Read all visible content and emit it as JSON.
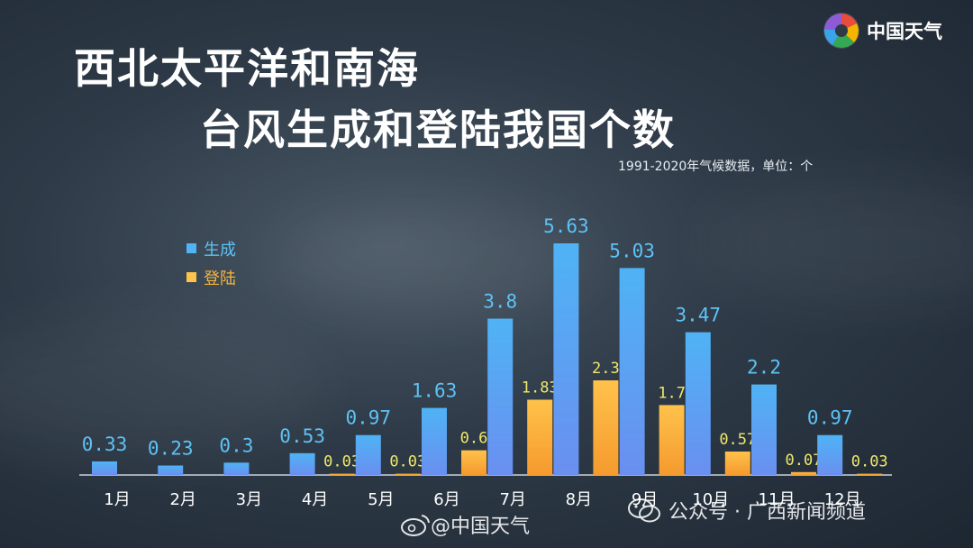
{
  "header": {
    "title_line1": "西北太平洋和南海",
    "title_line2": "台风生成和登陆我国个数",
    "subtitle": "1991-2020年气候数据，单位：个"
  },
  "logo": {
    "text": "中国天气",
    "icon": "pinwheel-logo-icon"
  },
  "watermarks": {
    "weibo": "@中国天气",
    "weibo_icon": "weibo-icon",
    "wechat": "公众号 · 广西新闻频道",
    "wechat_icon": "wechat-icon"
  },
  "colors": {
    "genesis": "#4fa9f0",
    "landfall": "#f5b43a",
    "genesis_label": "#5ec2f5",
    "landfall_label": "#f0e86a"
  },
  "chart_data": {
    "type": "bar",
    "title": "西北太平洋和南海台风生成和登陆我国个数",
    "subtitle": "1991-2020年气候数据，单位：个",
    "categories": [
      "1月",
      "2月",
      "3月",
      "4月",
      "5月",
      "6月",
      "7月",
      "8月",
      "9月",
      "10月",
      "11月",
      "12月"
    ],
    "series": [
      {
        "name": "生成",
        "values": [
          0.33,
          0.23,
          0.3,
          0.53,
          0.97,
          1.63,
          3.8,
          5.63,
          5.03,
          3.47,
          2.2,
          0.97
        ],
        "labels": [
          "0.33",
          "0.23",
          "0.3",
          "0.53",
          "0.97",
          "1.63",
          "3.8",
          "5.63",
          "5.03",
          "3.47",
          "2.2",
          "0.97"
        ]
      },
      {
        "name": "登陆",
        "values": [
          0,
          0,
          0,
          0.03,
          0.03,
          0.6,
          1.83,
          2.3,
          1.7,
          0.57,
          0.07,
          0.03
        ],
        "labels": [
          "",
          "",
          "",
          "0.03",
          "0.03",
          "0.6",
          "1.83",
          "2.3",
          "1.7",
          "0.57",
          "0.07",
          "0.03"
        ]
      }
    ],
    "legend": "top-left",
    "ylim": [
      0,
      5.63
    ],
    "grid": false
  }
}
